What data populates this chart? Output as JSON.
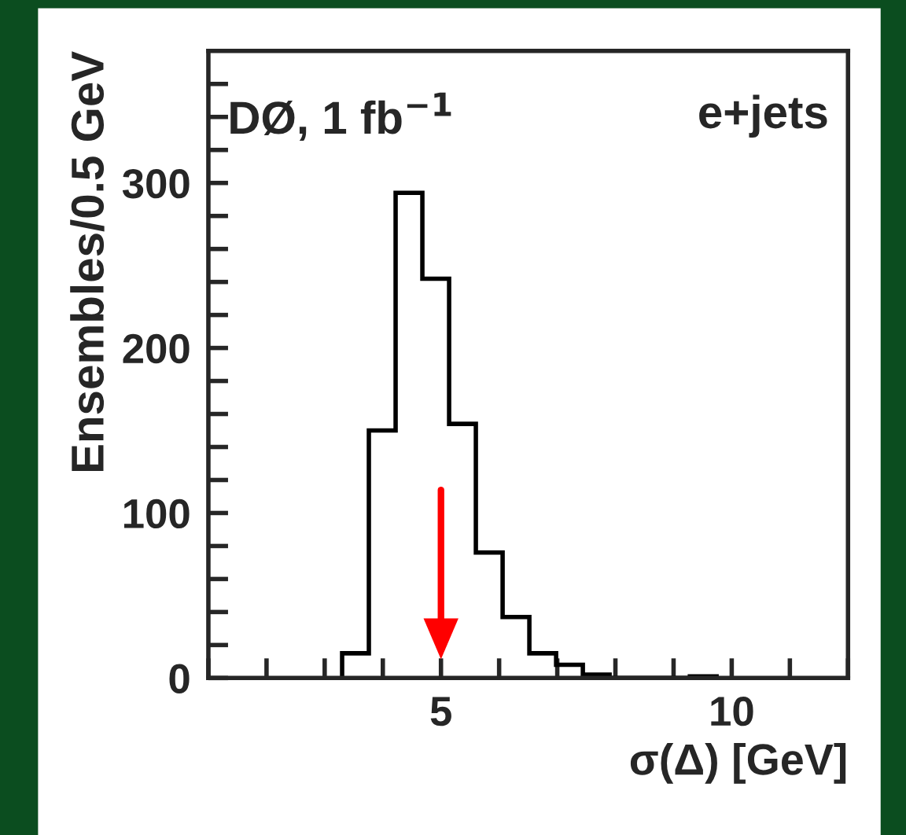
{
  "chart_data": {
    "type": "histogram",
    "xlabel": "σ(Δ) [GeV]",
    "ylabel": "Ensembles/0.5 GeV",
    "bins": [
      3.3,
      3.76,
      4.22,
      4.68,
      5.14,
      5.6,
      6.06,
      6.52,
      6.98,
      7.44,
      7.9,
      8.36,
      8.82,
      9.28,
      9.74
    ],
    "values": [
      15,
      150,
      294,
      242,
      154,
      76,
      37,
      15,
      8,
      2,
      0,
      0,
      0,
      1
    ],
    "color": "#000000",
    "xlim": [
      1,
      12
    ],
    "ylim": [
      0,
      380
    ],
    "xticks": [
      {
        "value": 1,
        "label": null
      },
      {
        "value": 2,
        "label": null
      },
      {
        "value": 3,
        "label": null
      },
      {
        "value": 4,
        "label": null
      },
      5,
      {
        "value": 6,
        "label": null
      },
      {
        "value": 7,
        "label": null
      },
      {
        "value": 8,
        "label": null
      },
      {
        "value": 9,
        "label": null
      },
      10,
      {
        "value": 11,
        "label": null
      },
      {
        "value": 12,
        "label": null
      }
    ],
    "yticks": [
      0,
      {
        "value": 20,
        "label": null
      },
      {
        "value": 40,
        "label": null
      },
      {
        "value": 60,
        "label": null
      },
      {
        "value": 80,
        "label": null
      },
      100,
      {
        "value": 120,
        "label": null
      },
      {
        "value": 140,
        "label": null
      },
      {
        "value": 160,
        "label": null
      },
      {
        "value": 180,
        "label": null
      },
      200,
      {
        "value": 220,
        "label": null
      },
      {
        "value": 240,
        "label": null
      },
      {
        "value": 260,
        "label": null
      },
      {
        "value": 280,
        "label": null
      },
      300,
      {
        "value": 320,
        "label": null
      },
      {
        "value": 340,
        "label": null
      },
      {
        "value": 360,
        "label": null
      }
    ],
    "ref_lines": [
      {
        "axis": "x",
        "value": 5,
        "color": "#ff0000"
      }
    ],
    "annotations": [
      "DØ, 1 fb$^{−1}$",
      "e+jets"
    ],
    "grid": false,
    "legend": false
  }
}
